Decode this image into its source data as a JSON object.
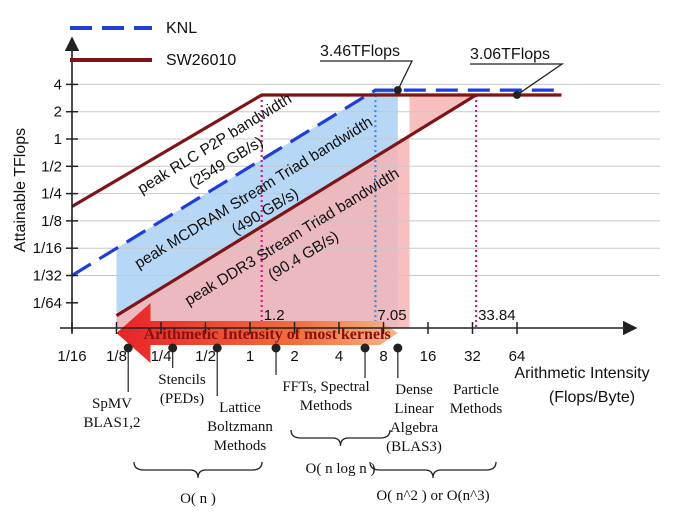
{
  "chart_data": {
    "type": "line",
    "scale": "log2-log2",
    "ylabel": "Attainable  TFlops",
    "xlabel_lines": [
      "Arithmetic Intensity",
      "(Flops/Byte)"
    ],
    "x_ticks": [
      {
        "value": 0.0625,
        "label": "1/16"
      },
      {
        "value": 0.125,
        "label": "1/8"
      },
      {
        "value": 0.25,
        "label": "1/4"
      },
      {
        "value": 0.5,
        "label": "1/2"
      },
      {
        "value": 1,
        "label": "1"
      },
      {
        "value": 2,
        "label": "2"
      },
      {
        "value": 4,
        "label": "4"
      },
      {
        "value": 8,
        "label": "8"
      },
      {
        "value": 16,
        "label": "16"
      },
      {
        "value": 32,
        "label": "32"
      },
      {
        "value": 64,
        "label": "64"
      }
    ],
    "y_ticks": [
      {
        "value": 0.015625,
        "label": "1/64"
      },
      {
        "value": 0.03125,
        "label": "1/32"
      },
      {
        "value": 0.0625,
        "label": "1/16"
      },
      {
        "value": 0.125,
        "label": "1/8"
      },
      {
        "value": 0.25,
        "label": "1/4"
      },
      {
        "value": 0.5,
        "label": "1/2"
      },
      {
        "value": 1,
        "label": "1"
      },
      {
        "value": 2,
        "label": "2"
      },
      {
        "value": 4,
        "label": "4"
      }
    ],
    "xlim": [
      0.0625,
      128
    ],
    "ylim": [
      0.015625,
      6
    ],
    "grid": "horizontal",
    "legend": {
      "placement": "top-left"
    },
    "series": [
      {
        "name": "KNL",
        "style": "dashed",
        "color": "#1f3ed8",
        "points": [
          [
            0.0625,
            0.03125
          ],
          [
            7.05,
            3.46
          ],
          [
            128,
            3.46
          ]
        ]
      },
      {
        "name": "SW26010",
        "style": "solid",
        "color": "#7f1418",
        "points": [
          [
            0.0625,
            0.18
          ],
          [
            1.2,
            3.06
          ],
          [
            128,
            3.06
          ]
        ]
      },
      {
        "name": "",
        "style": "solid",
        "color": "#7f1418",
        "points": [
          [
            0.125,
            0.0113
          ],
          [
            33.84,
            3.06
          ]
        ]
      }
    ],
    "roof_labels": [
      {
        "lines": [
          "peak RLC P2P bandwidth",
          "(2549 GB/s)"
        ],
        "x": 0.6,
        "y": 0.8
      },
      {
        "lines": [
          "peak MCDRAM Stream Triad bandwidth",
          "(490 GB/s)"
        ],
        "x": 1.1,
        "y": 0.23
      },
      {
        "lines": [
          "peak DDR3 Stream Triad bandwidth",
          "(90.4 GB/s)"
        ],
        "x": 2.0,
        "y": 0.075
      }
    ],
    "peak_callouts": [
      {
        "label": "3.46TFlops",
        "x": 10.0,
        "y": 3.46
      },
      {
        "label": "3.06TFlops",
        "x": 64,
        "y": 3.06
      }
    ],
    "ridge_points": [
      {
        "label": "1.2",
        "x": 1.2,
        "color": "#d81b8a"
      },
      {
        "label": "7.05",
        "x": 7.05,
        "color": "#4a86d8"
      },
      {
        "label": "33.84",
        "x": 33.84,
        "color": "#d81b8a"
      }
    ],
    "regions": [
      {
        "name": "mcdram-region",
        "color": "#a9d1f5",
        "x": [
          0.125,
          10
        ],
        "top": 3.46
      },
      {
        "name": "ddr3-region",
        "color": "#f6b4b4",
        "x": [
          0.125,
          12
        ],
        "top": 3.06
      }
    ],
    "arrow_label": "Arithmetic Intensity of most kernels",
    "kernels": [
      {
        "lines": [
          "SpMV",
          "BLAS1,2"
        ],
        "x": 0.15
      },
      {
        "lines": [
          "Stencils",
          "(PEDs)"
        ],
        "x": 0.3
      },
      {
        "lines": [
          "Lattice",
          "Boltzmann",
          "Methods"
        ],
        "x": 0.6
      },
      {
        "lines": [
          "FFTs, Spectral",
          "Methods"
        ],
        "x": 1.5
      },
      {
        "lines": [
          "Dense",
          "Linear",
          "Algebra",
          "(BLAS3)"
        ],
        "x": 6.0
      },
      {
        "lines": [
          "Particle",
          "Methods"
        ],
        "x": 10.0
      }
    ],
    "complexity_groups": [
      {
        "label": "O( n )"
      },
      {
        "label": "O( n log n )"
      },
      {
        "label": "O( n^2 ) or O(n^3)"
      }
    ]
  }
}
